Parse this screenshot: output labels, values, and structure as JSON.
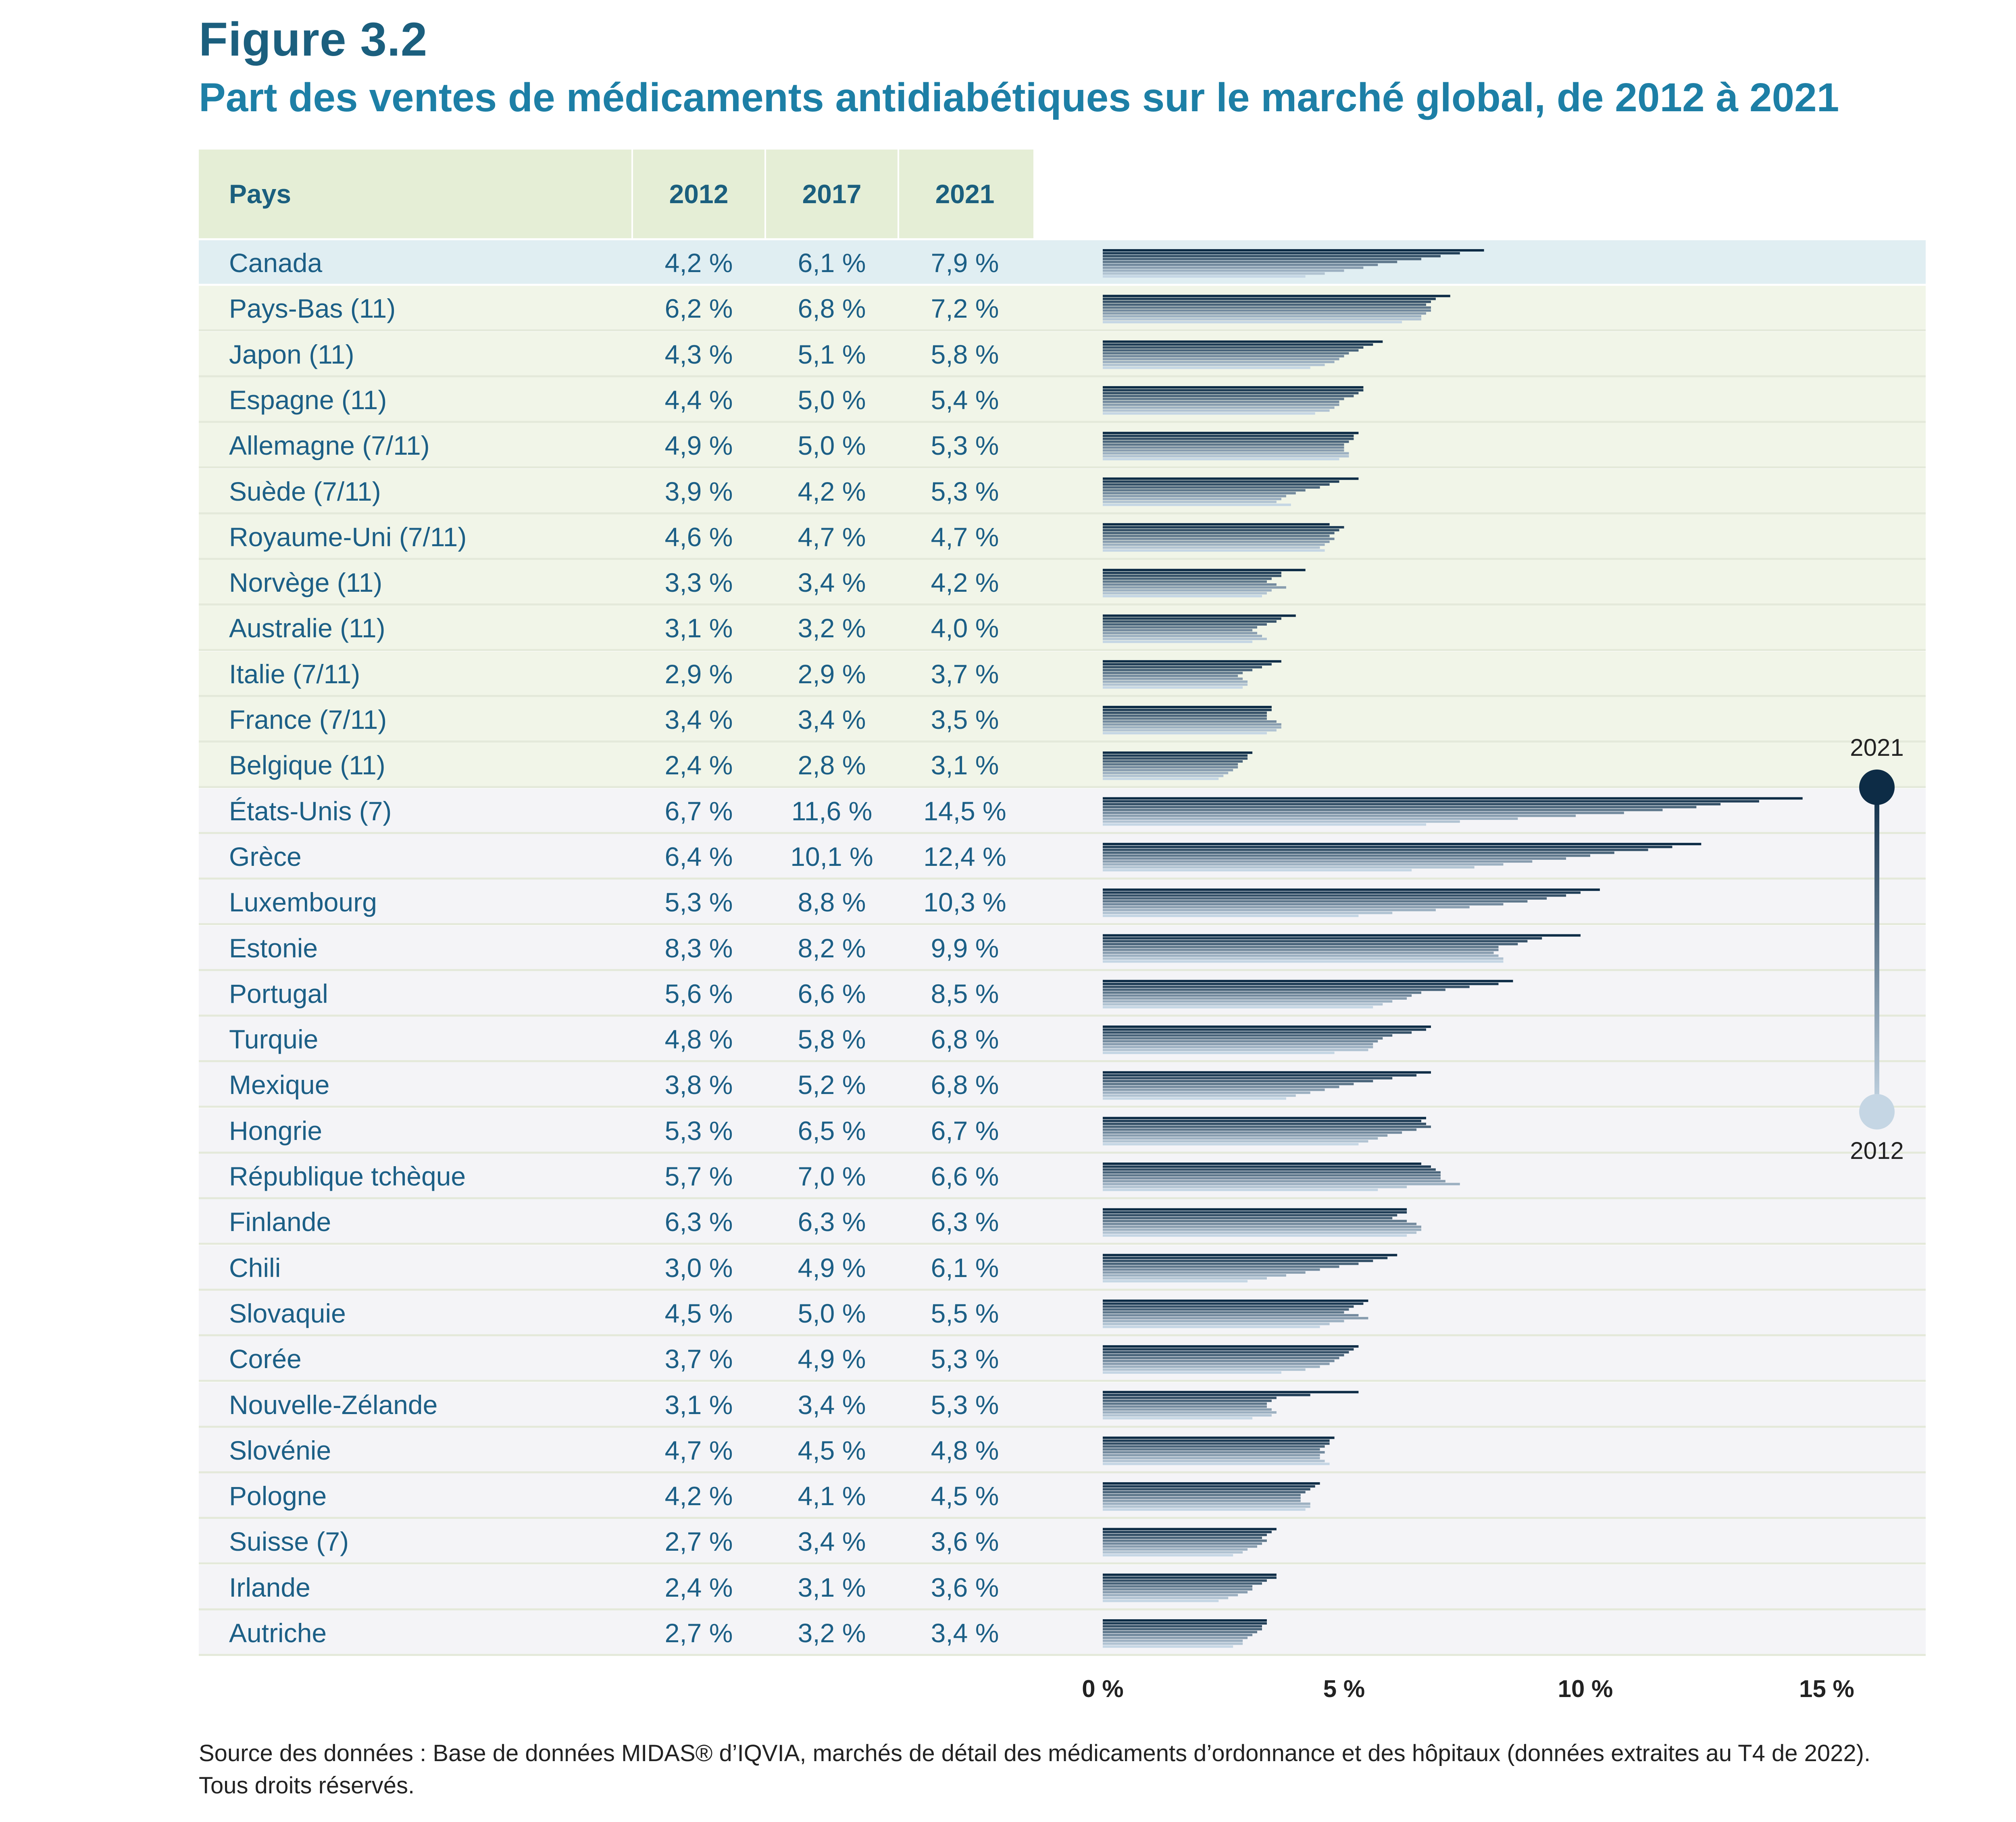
{
  "figure_label": "Figure 3.2",
  "title": "Part des ventes de médicaments antidiabétiques sur le marché global, de 2012 à 2021",
  "table_headers": {
    "country": "Pays",
    "y2012": "2012",
    "y2017": "2017",
    "y2021": "2021"
  },
  "colors": {
    "dark": "#0d2c46",
    "light": "#c5d6e4",
    "header_bg": "#e5eed6",
    "canada_bg": "#e0eef2",
    "g11_bg": "#f1f5e8",
    "other_bg": "#f4f4f7"
  },
  "legend": {
    "top": "2021",
    "bottom": "2012"
  },
  "source": "Source des données : Base de données MIDAS® d’IQVIA, marchés de détail des médicaments d’ordonnance et des hôpitaux (données extraites au T4 de 2022).",
  "rights": "Tous droits réservés.",
  "chart_data": {
    "type": "bar",
    "title": "Part des ventes de médicaments antidiabétiques sur le marché global, de 2012 à 2021",
    "xlabel": "",
    "ylabel": "",
    "xlim": [
      0,
      16
    ],
    "xticks": [
      0,
      5,
      10,
      15
    ],
    "xtick_labels": [
      "0 %",
      "5 %",
      "10 %",
      "15 %"
    ],
    "series_years": [
      "2012",
      "2013",
      "2014",
      "2015",
      "2016",
      "2017",
      "2018",
      "2019",
      "2020",
      "2021"
    ],
    "rows": [
      {
        "country": "Canada",
        "group": "canada",
        "v2012_label": "4,2 %",
        "v2017_label": "6,1 %",
        "v2021_label": "7,9 %",
        "values": [
          4.2,
          4.6,
          5.0,
          5.4,
          5.7,
          6.1,
          6.6,
          7.0,
          7.4,
          7.9
        ]
      },
      {
        "country": "Pays-Bas (11)",
        "group": "g11",
        "v2012_label": "6,2 %",
        "v2017_label": "6,8 %",
        "v2021_label": "7,2 %",
        "values": [
          6.2,
          6.6,
          6.6,
          6.7,
          6.8,
          6.8,
          6.7,
          6.8,
          6.9,
          7.2
        ]
      },
      {
        "country": "Japon (11)",
        "group": "g11",
        "v2012_label": "4,3 %",
        "v2017_label": "5,1 %",
        "v2021_label": "5,8 %",
        "values": [
          4.3,
          4.6,
          4.8,
          4.9,
          5.0,
          5.1,
          5.3,
          5.4,
          5.6,
          5.8
        ]
      },
      {
        "country": "Espagne (11)",
        "group": "g11",
        "v2012_label": "4,4 %",
        "v2017_label": "5,0 %",
        "v2021_label": "5,4 %",
        "values": [
          4.4,
          4.7,
          4.8,
          4.9,
          4.9,
          5.0,
          5.2,
          5.3,
          5.4,
          5.4
        ]
      },
      {
        "country": "Allemagne (7/11)",
        "group": "g11",
        "v2012_label": "4,9 %",
        "v2017_label": "5,0 %",
        "v2021_label": "5,3 %",
        "values": [
          4.9,
          5.1,
          5.1,
          5.0,
          5.0,
          5.0,
          5.1,
          5.2,
          5.2,
          5.3
        ]
      },
      {
        "country": "Suède (7/11)",
        "group": "g11",
        "v2012_label": "3,9 %",
        "v2017_label": "4,2 %",
        "v2021_label": "5,3 %",
        "values": [
          3.9,
          3.6,
          3.7,
          3.8,
          4.0,
          4.2,
          4.5,
          4.7,
          4.9,
          5.3
        ]
      },
      {
        "country": "Royaume-Uni (7/11)",
        "group": "g11",
        "v2012_label": "4,6 %",
        "v2017_label": "4,7 %",
        "v2021_label": "4,7 %",
        "values": [
          4.6,
          4.5,
          4.6,
          4.7,
          4.8,
          4.7,
          4.8,
          4.9,
          5.0,
          4.7
        ]
      },
      {
        "country": "Norvège (11)",
        "group": "g11",
        "v2012_label": "3,3 %",
        "v2017_label": "3,4 %",
        "v2021_label": "4,2 %",
        "values": [
          3.3,
          3.4,
          3.5,
          3.8,
          3.6,
          3.4,
          3.5,
          3.7,
          3.7,
          4.2
        ]
      },
      {
        "country": "Australie (11)",
        "group": "g11",
        "v2012_label": "3,1 %",
        "v2017_label": "3,2 %",
        "v2021_label": "4,0 %",
        "values": [
          3.1,
          3.4,
          3.3,
          3.2,
          3.1,
          3.2,
          3.4,
          3.6,
          3.7,
          4.0
        ]
      },
      {
        "country": "Italie (7/11)",
        "group": "g11",
        "v2012_label": "2,9 %",
        "v2017_label": "2,9 %",
        "v2021_label": "3,7 %",
        "values": [
          2.9,
          3.0,
          3.0,
          2.9,
          2.8,
          2.9,
          3.1,
          3.3,
          3.5,
          3.7
        ]
      },
      {
        "country": "France (7/11)",
        "group": "g11",
        "v2012_label": "3,4 %",
        "v2017_label": "3,4 %",
        "v2021_label": "3,5 %",
        "values": [
          3.4,
          3.6,
          3.7,
          3.7,
          3.6,
          3.4,
          3.4,
          3.4,
          3.5,
          3.5
        ]
      },
      {
        "country": "Belgique (11)",
        "group": "g11",
        "v2012_label": "2,4 %",
        "v2017_label": "2,8 %",
        "v2021_label": "3,1 %",
        "values": [
          2.4,
          2.5,
          2.6,
          2.7,
          2.8,
          2.8,
          2.9,
          3.0,
          3.0,
          3.1
        ]
      },
      {
        "country": "États-Unis (7)",
        "group": "other",
        "v2012_label": "6,7 %",
        "v2017_label": "11,6 %",
        "v2021_label": "14,5 %",
        "values": [
          6.7,
          7.4,
          8.6,
          9.8,
          10.8,
          11.6,
          12.3,
          12.8,
          13.6,
          14.5
        ]
      },
      {
        "country": "Grèce",
        "group": "other",
        "v2012_label": "6,4 %",
        "v2017_label": "10,1 %",
        "v2021_label": "12,4 %",
        "values": [
          6.4,
          7.7,
          8.3,
          8.9,
          9.6,
          10.1,
          10.6,
          11.3,
          11.8,
          12.4
        ]
      },
      {
        "country": "Luxembourg",
        "group": "other",
        "v2012_label": "5,3 %",
        "v2017_label": "8,8 %",
        "v2021_label": "10,3 %",
        "values": [
          5.3,
          6.0,
          6.9,
          7.6,
          8.3,
          8.8,
          9.2,
          9.6,
          9.9,
          10.3
        ]
      },
      {
        "country": "Estonie",
        "group": "other",
        "v2012_label": "8,3 %",
        "v2017_label": "8,2 %",
        "v2021_label": "9,9 %",
        "values": [
          8.3,
          8.3,
          8.2,
          8.1,
          8.2,
          8.2,
          8.6,
          8.8,
          9.1,
          9.9
        ]
      },
      {
        "country": "Portugal",
        "group": "other",
        "v2012_label": "5,6 %",
        "v2017_label": "6,6 %",
        "v2021_label": "8,5 %",
        "values": [
          5.6,
          5.8,
          6.0,
          6.3,
          6.4,
          6.6,
          7.1,
          7.6,
          8.2,
          8.5
        ]
      },
      {
        "country": "Turquie",
        "group": "other",
        "v2012_label": "4,8 %",
        "v2017_label": "5,8 %",
        "v2021_label": "6,8 %",
        "values": [
          4.8,
          5.5,
          5.6,
          5.6,
          5.7,
          5.8,
          6.0,
          6.4,
          6.7,
          6.8
        ]
      },
      {
        "country": "Mexique",
        "group": "other",
        "v2012_label": "3,8 %",
        "v2017_label": "5,2 %",
        "v2021_label": "6,8 %",
        "values": [
          3.8,
          4.0,
          4.3,
          4.6,
          4.9,
          5.2,
          5.6,
          6.0,
          6.5,
          6.8
        ]
      },
      {
        "country": "Hongrie",
        "group": "other",
        "v2012_label": "5,3 %",
        "v2017_label": "6,5 %",
        "v2021_label": "6,7 %",
        "values": [
          5.3,
          5.5,
          5.7,
          5.9,
          6.2,
          6.5,
          6.8,
          6.7,
          6.6,
          6.7
        ]
      },
      {
        "country": "République tchèque",
        "group": "other",
        "v2012_label": "5,7 %",
        "v2017_label": "7,0 %",
        "v2021_label": "6,6 %",
        "values": [
          5.7,
          6.3,
          7.4,
          7.1,
          7.0,
          7.0,
          7.0,
          6.9,
          6.8,
          6.6
        ]
      },
      {
        "country": "Finlande",
        "group": "other",
        "v2012_label": "6,3 %",
        "v2017_label": "6,3 %",
        "v2021_label": "6,3 %",
        "values": [
          6.3,
          6.5,
          6.6,
          6.6,
          6.5,
          6.3,
          6.0,
          6.1,
          6.3,
          6.3
        ]
      },
      {
        "country": "Chili",
        "group": "other",
        "v2012_label": "3,0 %",
        "v2017_label": "4,9 %",
        "v2021_label": "6,1 %",
        "values": [
          3.0,
          3.4,
          3.8,
          4.2,
          4.5,
          4.9,
          5.3,
          5.6,
          5.9,
          6.1
        ]
      },
      {
        "country": "Slovaquie",
        "group": "other",
        "v2012_label": "4,5 %",
        "v2017_label": "5,0 %",
        "v2021_label": "5,5 %",
        "values": [
          4.5,
          4.7,
          5.0,
          5.5,
          5.3,
          5.0,
          5.1,
          5.2,
          5.4,
          5.5
        ]
      },
      {
        "country": "Corée",
        "group": "other",
        "v2012_label": "3,7 %",
        "v2017_label": "4,9 %",
        "v2021_label": "5,3 %",
        "values": [
          3.7,
          4.2,
          4.5,
          4.7,
          4.8,
          4.9,
          5.0,
          5.1,
          5.2,
          5.3
        ]
      },
      {
        "country": "Nouvelle-Zélande",
        "group": "other",
        "v2012_label": "3,1 %",
        "v2017_label": "3,4 %",
        "v2021_label": "5,3 %",
        "values": [
          3.1,
          3.5,
          3.6,
          3.5,
          3.4,
          3.4,
          3.5,
          3.6,
          4.3,
          5.3
        ]
      },
      {
        "country": "Slovénie",
        "group": "other",
        "v2012_label": "4,7 %",
        "v2017_label": "4,5 %",
        "v2021_label": "4,8 %",
        "values": [
          4.7,
          4.6,
          4.5,
          4.5,
          4.6,
          4.5,
          4.6,
          4.7,
          4.7,
          4.8
        ]
      },
      {
        "country": "Pologne",
        "group": "other",
        "v2012_label": "4,2 %",
        "v2017_label": "4,1 %",
        "v2021_label": "4,5 %",
        "values": [
          4.2,
          4.3,
          4.3,
          4.1,
          4.1,
          4.1,
          4.2,
          4.3,
          4.4,
          4.5
        ]
      },
      {
        "country": "Suisse (7)",
        "group": "other",
        "v2012_label": "2,7 %",
        "v2017_label": "3,4 %",
        "v2021_label": "3,6 %",
        "values": [
          2.7,
          2.9,
          3.0,
          3.2,
          3.3,
          3.4,
          3.3,
          3.4,
          3.5,
          3.6
        ]
      },
      {
        "country": "Irlande",
        "group": "other",
        "v2012_label": "2,4 %",
        "v2017_label": "3,1 %",
        "v2021_label": "3,6 %",
        "values": [
          2.4,
          2.6,
          2.8,
          3.0,
          3.1,
          3.1,
          3.3,
          3.4,
          3.6,
          3.6
        ]
      },
      {
        "country": "Autriche",
        "group": "other",
        "v2012_label": "2,7 %",
        "v2017_label": "3,2 %",
        "v2021_label": "3,4 %",
        "values": [
          2.7,
          2.9,
          2.9,
          3.0,
          3.1,
          3.2,
          3.3,
          3.3,
          3.4,
          3.4
        ]
      }
    ]
  }
}
